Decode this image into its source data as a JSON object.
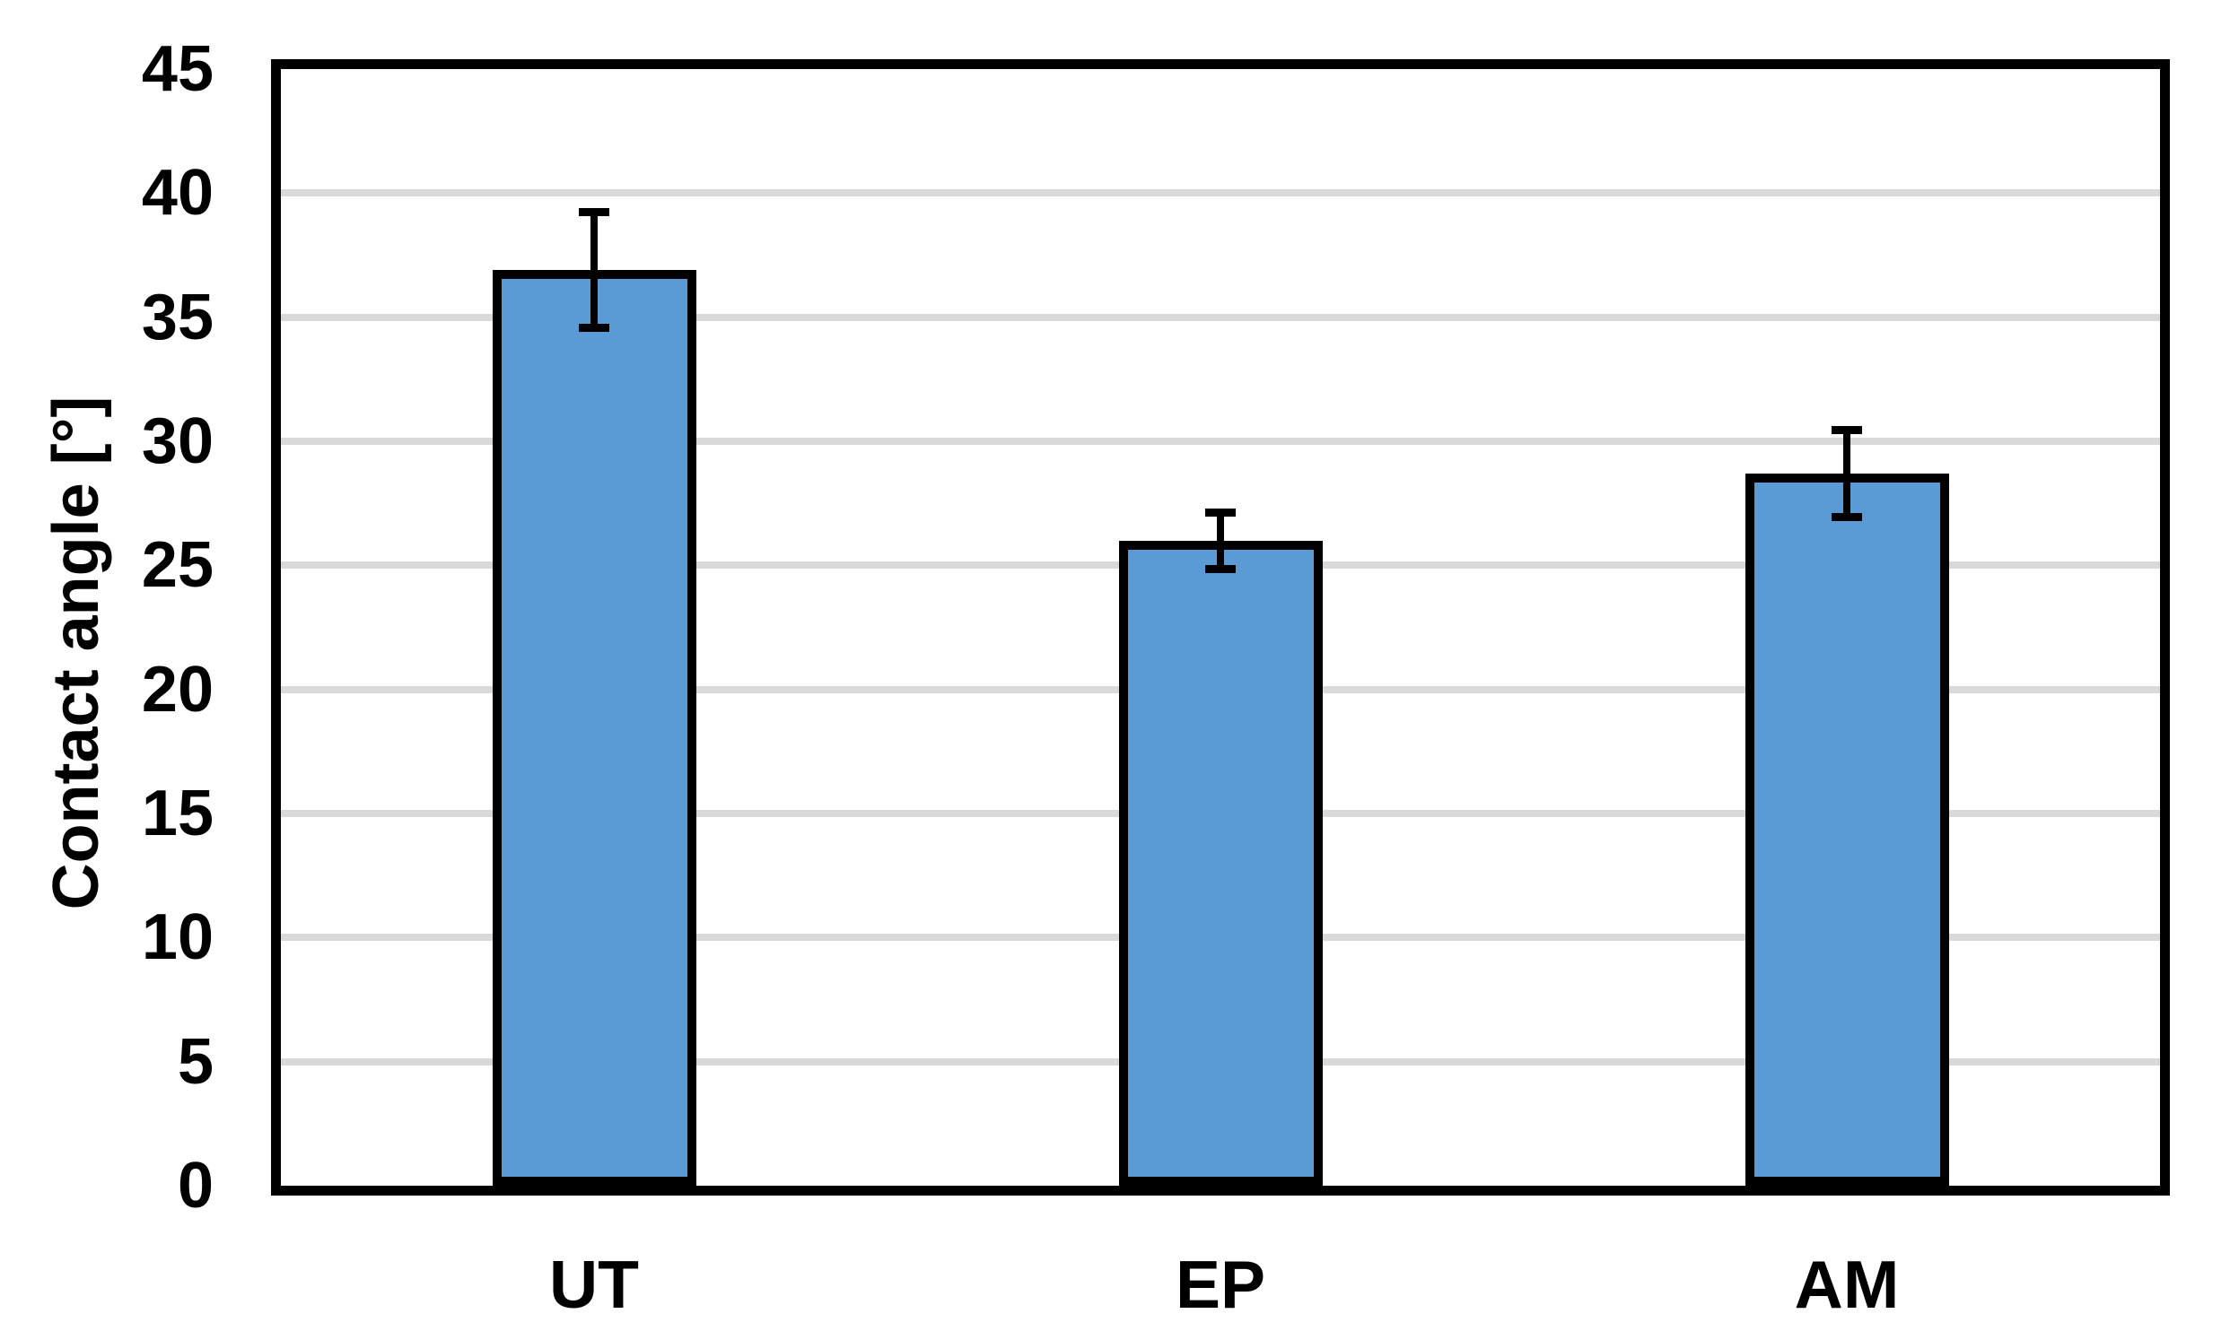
{
  "chart_data": {
    "type": "bar",
    "categories": [
      "UT",
      "EP",
      "AM"
    ],
    "values": [
      36.9,
      26.0,
      28.7
    ],
    "error_bars": [
      2.5,
      1.3,
      1.9
    ],
    "ylabel": "Contact angle [°]",
    "ylim": [
      0,
      45
    ],
    "ytick_interval": 5,
    "yticks": [
      0,
      5,
      10,
      15,
      20,
      25,
      30,
      35,
      40,
      45
    ],
    "grid": "horizontal",
    "legend": "none",
    "colors": {
      "bar_fill": "#5B9BD5",
      "bar_border": "#000000",
      "error_bar": "#000000",
      "gridline": "#D9D9D9",
      "axis_frame": "#000000",
      "text": "#000000",
      "background": "#FFFFFF"
    }
  }
}
